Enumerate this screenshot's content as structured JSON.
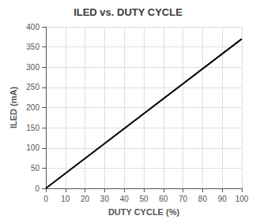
{
  "chart_data": {
    "type": "line",
    "title": "ILED vs. DUTY CYCLE",
    "x_label": "DUTY CYCLE (%)",
    "y_label": "ILED (mA)",
    "x": [
      0,
      100
    ],
    "values": [
      0,
      370
    ],
    "color": "#000000",
    "xlim": [
      0,
      100
    ],
    "ylim": [
      0,
      400
    ],
    "xticks": [
      0,
      10,
      20,
      30,
      40,
      50,
      60,
      70,
      80,
      90,
      100
    ],
    "yticks": [
      0,
      50,
      100,
      150,
      200,
      250,
      300,
      350,
      400
    ],
    "grid": true
  }
}
